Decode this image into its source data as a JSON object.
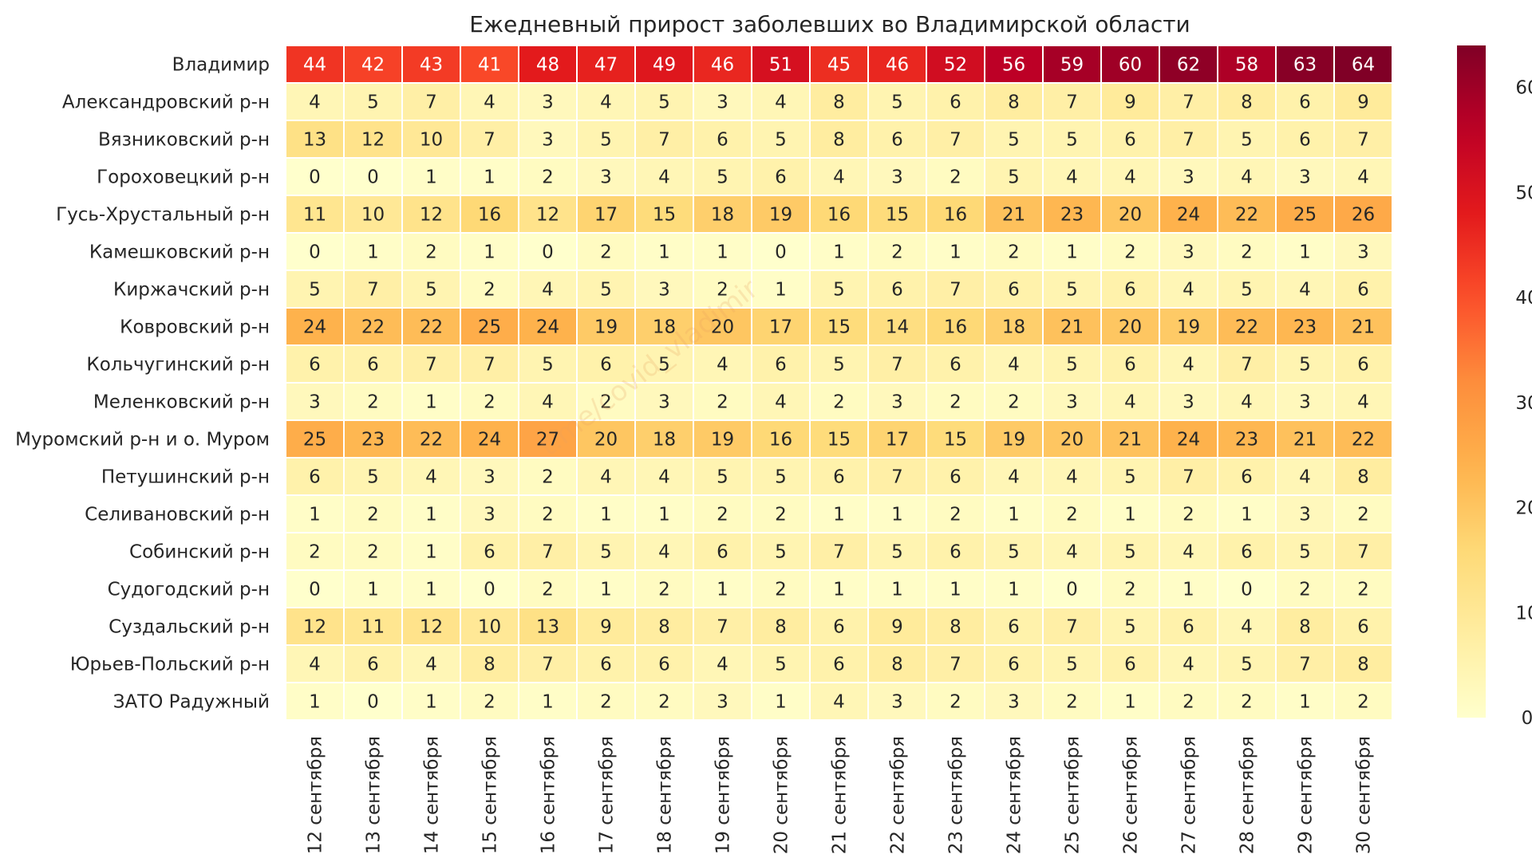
{
  "chart_data": {
    "type": "heatmap",
    "title": "Ежедневный прирост заболевших во Владимирской области",
    "watermark": "t.me/covid_vladimir",
    "columns": [
      "12 сентября",
      "13 сентября",
      "14 сентября",
      "15 сентября",
      "16 сентября",
      "17 сентября",
      "18 сентября",
      "19 сентября",
      "20 сентября",
      "21 сентября",
      "22 сентября",
      "23 сентября",
      "24 сентября",
      "25 сентября",
      "26 сентября",
      "27 сентября",
      "28 сентября",
      "29 сентября",
      "30 сентября"
    ],
    "rows": [
      "Владимир",
      "Александровский р-н",
      "Вязниковский р-н",
      "Гороховецкий р-н",
      "Гусь-Хрустальный р-н",
      "Камешковский р-н",
      "Киржачский р-н",
      "Ковровский р-н",
      "Кольчугинский р-н",
      "Меленковский р-н",
      "Муромский р-н и о. Муром",
      "Петушинский р-н",
      "Селивановский р-н",
      "Собинский р-н",
      "Судогодский р-н",
      "Суздальский р-н",
      "Юрьев-Польский р-н",
      "ЗАТО Радужный"
    ],
    "values": [
      [
        44,
        42,
        43,
        41,
        48,
        47,
        49,
        46,
        51,
        45,
        46,
        52,
        56,
        59,
        60,
        62,
        58,
        63,
        64
      ],
      [
        4,
        5,
        7,
        4,
        3,
        4,
        5,
        3,
        4,
        8,
        5,
        6,
        8,
        7,
        9,
        7,
        8,
        6,
        9
      ],
      [
        13,
        12,
        10,
        7,
        3,
        5,
        7,
        6,
        5,
        8,
        6,
        7,
        5,
        5,
        6,
        7,
        5,
        6,
        7
      ],
      [
        0,
        0,
        1,
        1,
        2,
        3,
        4,
        5,
        6,
        4,
        3,
        2,
        5,
        4,
        4,
        3,
        4,
        3,
        4
      ],
      [
        11,
        10,
        12,
        16,
        12,
        17,
        15,
        18,
        19,
        16,
        15,
        16,
        21,
        23,
        20,
        24,
        22,
        25,
        26
      ],
      [
        0,
        1,
        2,
        1,
        0,
        2,
        1,
        1,
        0,
        1,
        2,
        1,
        2,
        1,
        2,
        3,
        2,
        1,
        3
      ],
      [
        5,
        7,
        5,
        2,
        4,
        5,
        3,
        2,
        1,
        5,
        6,
        7,
        6,
        5,
        6,
        4,
        5,
        4,
        6
      ],
      [
        24,
        22,
        22,
        25,
        24,
        19,
        18,
        20,
        17,
        15,
        14,
        16,
        18,
        21,
        20,
        19,
        22,
        23,
        21
      ],
      [
        6,
        6,
        7,
        7,
        5,
        6,
        5,
        4,
        6,
        5,
        7,
        6,
        4,
        5,
        6,
        4,
        7,
        5,
        6
      ],
      [
        3,
        2,
        1,
        2,
        4,
        2,
        3,
        2,
        4,
        2,
        3,
        2,
        2,
        3,
        4,
        3,
        4,
        3,
        4
      ],
      [
        25,
        23,
        22,
        24,
        27,
        20,
        18,
        19,
        16,
        15,
        17,
        15,
        19,
        20,
        21,
        24,
        23,
        21,
        22
      ],
      [
        6,
        5,
        4,
        3,
        2,
        4,
        4,
        5,
        5,
        6,
        7,
        6,
        4,
        4,
        5,
        7,
        6,
        4,
        8
      ],
      [
        1,
        2,
        1,
        3,
        2,
        1,
        1,
        2,
        2,
        1,
        1,
        2,
        1,
        2,
        1,
        2,
        1,
        3,
        2
      ],
      [
        2,
        2,
        1,
        6,
        7,
        5,
        4,
        6,
        5,
        7,
        5,
        6,
        5,
        4,
        5,
        4,
        6,
        5,
        7
      ],
      [
        0,
        1,
        1,
        0,
        2,
        1,
        2,
        1,
        2,
        1,
        1,
        1,
        1,
        0,
        2,
        1,
        0,
        2,
        2
      ],
      [
        12,
        11,
        12,
        10,
        13,
        9,
        8,
        7,
        8,
        6,
        9,
        8,
        6,
        7,
        5,
        6,
        4,
        8,
        6
      ],
      [
        4,
        6,
        4,
        8,
        7,
        6,
        6,
        4,
        5,
        6,
        8,
        7,
        6,
        5,
        6,
        4,
        5,
        7,
        8
      ],
      [
        1,
        0,
        1,
        2,
        1,
        2,
        2,
        3,
        1,
        4,
        3,
        2,
        3,
        2,
        1,
        2,
        2,
        1,
        2
      ]
    ],
    "vmin": 0,
    "vmax": 64,
    "colormap": "YlOrRd",
    "colorbar_ticks": [
      0,
      10,
      20,
      30,
      40,
      50,
      60
    ],
    "cell_border_color": "#ffffff"
  }
}
